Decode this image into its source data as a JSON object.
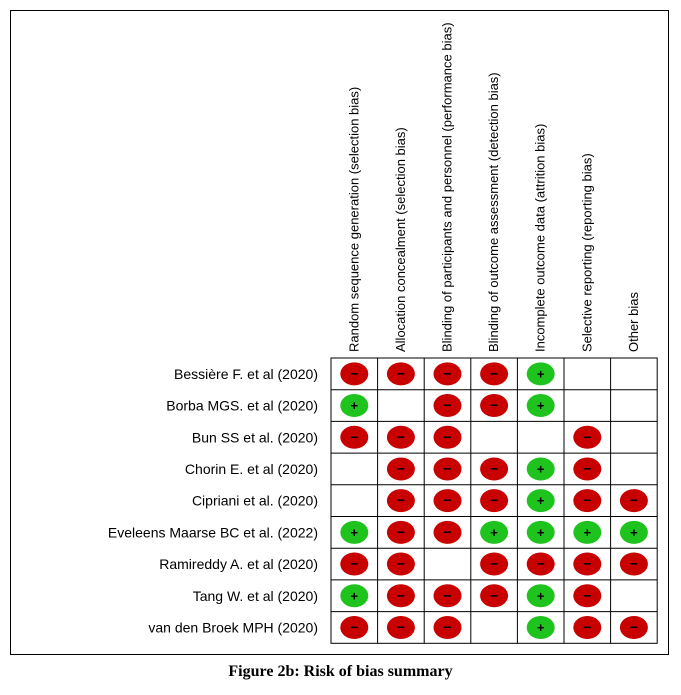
{
  "chart_data": {
    "type": "table",
    "columns": [
      "Random sequence generation (selection bias)",
      "Allocation concealment (selection bias)",
      "Blinding of participants and personnel (performance bias)",
      "Blinding of outcome assessment (detection bias)",
      "Incomplete outcome data (attrition bias)",
      "Selective reporting (reporting bias)",
      "Other bias"
    ],
    "rows": [
      "Bessière F. et al (2020)",
      "Borba MGS. et al (2020)",
      "Bun SS et al. (2020)",
      "Chorin E. et al (2020)",
      "Cipriani et al. (2020)",
      "Eveleens Maarse BC et al. (2022)",
      "Ramireddy A. et al (2020)",
      "Tang W. et al (2020)",
      "van den Broek MPH (2020)"
    ],
    "values": [
      [
        "high",
        "high",
        "high",
        "high",
        "low",
        "",
        ""
      ],
      [
        "low",
        "",
        "high",
        "high",
        "low",
        "",
        ""
      ],
      [
        "high",
        "high",
        "high",
        "",
        "",
        "high",
        ""
      ],
      [
        "",
        "high",
        "high",
        "high",
        "low",
        "high",
        ""
      ],
      [
        "",
        "high",
        "high",
        "high",
        "low",
        "high",
        "high"
      ],
      [
        "low",
        "high",
        "high",
        "low",
        "low",
        "low",
        "low"
      ],
      [
        "high",
        "high",
        "",
        "high",
        "high",
        "high",
        "high"
      ],
      [
        "low",
        "high",
        "high",
        "high",
        "low",
        "high",
        ""
      ],
      [
        "high",
        "high",
        "high",
        "",
        "low",
        "high",
        "high"
      ]
    ],
    "legend": {
      "low": "+",
      "high": "−"
    },
    "colors": {
      "low": "#1ec31e",
      "high": "#c80000",
      "grid": "#000000"
    }
  },
  "caption": "Figure 2b: Risk of bias summary"
}
